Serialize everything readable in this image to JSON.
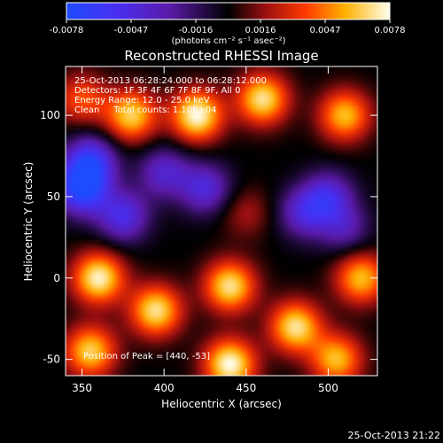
{
  "chart_data": {
    "type": "heatmap",
    "title": "Reconstructed RHESSI Image",
    "xlabel": "Heliocentric X (arcsec)",
    "ylabel": "Heliocentric Y (arcsec)",
    "xlim": [
      340,
      530
    ],
    "ylim": [
      -60,
      130
    ],
    "x_ticks": [
      350,
      400,
      450,
      500
    ],
    "y_ticks": [
      -50,
      0,
      50,
      100
    ],
    "colorbar": {
      "ticks": [
        "-0.0078",
        "-0.0047",
        "-0.0016",
        "0.0016",
        "0.0047",
        "0.0078"
      ],
      "range": [
        -0.0078,
        0.0078
      ],
      "unit_label": "(photons cm⁻² s⁻¹ asec⁻²)"
    },
    "annotations": {
      "time": "25-Oct-2013 06:28:24.000 to 06:28:12.000",
      "detectors": "Detectors: 1F 3F 4F 6F 7F 8F 9F, All 0",
      "energy": "Energy Range: 12.0 - 25.0 keV",
      "clean": "Clean     Total counts: 1.10E+04",
      "peak": "Position of Peak = [440, -53]"
    },
    "features": [
      {
        "x": 350,
        "y": 55,
        "value": -0.0075
      },
      {
        "x": 355,
        "y": 72,
        "value": -0.006
      },
      {
        "x": 375,
        "y": 38,
        "value": -0.005
      },
      {
        "x": 400,
        "y": 65,
        "value": -0.004
      },
      {
        "x": 425,
        "y": 55,
        "value": -0.0045
      },
      {
        "x": 485,
        "y": 40,
        "value": -0.004
      },
      {
        "x": 500,
        "y": 50,
        "value": -0.0045
      },
      {
        "x": 510,
        "y": 30,
        "value": -0.003
      },
      {
        "x": 450,
        "y": 40,
        "value": 0.002
      },
      {
        "x": 420,
        "y": 100,
        "value": 0.0078
      },
      {
        "x": 380,
        "y": 100,
        "value": 0.0065
      },
      {
        "x": 460,
        "y": 110,
        "value": 0.007
      },
      {
        "x": 510,
        "y": 100,
        "value": 0.006
      },
      {
        "x": 350,
        "y": 110,
        "value": 0.004
      },
      {
        "x": 360,
        "y": 0,
        "value": 0.0075
      },
      {
        "x": 395,
        "y": -20,
        "value": 0.007
      },
      {
        "x": 440,
        "y": -5,
        "value": 0.007
      },
      {
        "x": 480,
        "y": -30,
        "value": 0.007
      },
      {
        "x": 520,
        "y": 0,
        "value": 0.006
      },
      {
        "x": 440,
        "y": -53,
        "value": 0.0078
      },
      {
        "x": 355,
        "y": -45,
        "value": 0.0065
      },
      {
        "x": 505,
        "y": -50,
        "value": 0.006
      }
    ]
  },
  "footer": {
    "timestamp": "25-Oct-2013 21:22"
  }
}
